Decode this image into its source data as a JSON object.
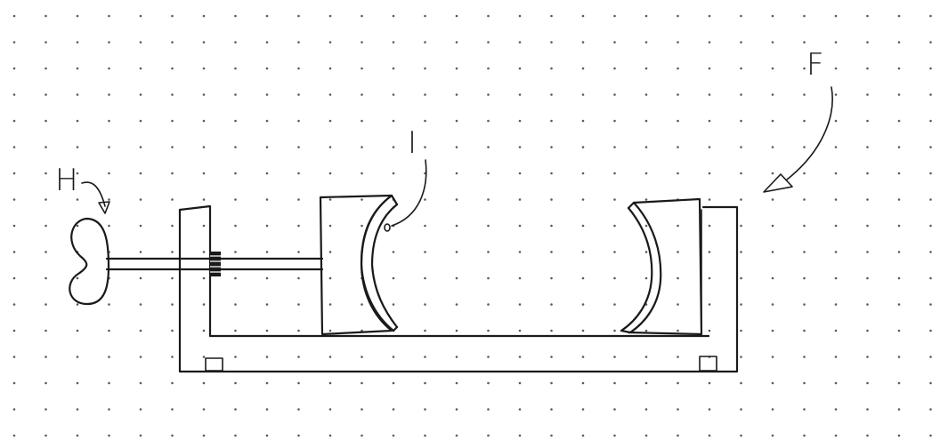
{
  "labels": {
    "hand_crank": "H",
    "clip": "I",
    "device": "F"
  },
  "colors": {
    "ink": "#1a1a1a",
    "grid_dot": "#5a5a5a",
    "paper": "#ffffff"
  }
}
